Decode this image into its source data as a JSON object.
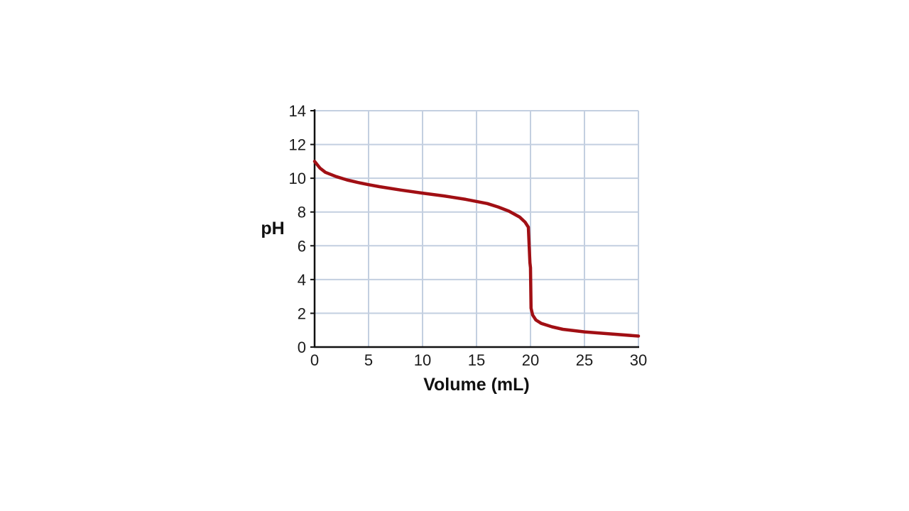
{
  "chart_data": {
    "type": "line",
    "title": "",
    "xlabel": "Volume (mL)",
    "ylabel": "pH",
    "xlim": [
      0,
      30
    ],
    "ylim": [
      0,
      14
    ],
    "xticks": [
      "0",
      "5",
      "10",
      "15",
      "20",
      "25",
      "30"
    ],
    "yticks": [
      "0",
      "2",
      "4",
      "6",
      "8",
      "10",
      "12",
      "14"
    ],
    "grid": true,
    "colors": {
      "line": "#a10f14",
      "grid": "#c3cfe0",
      "axis": "#111111"
    },
    "series": [
      {
        "x": [
          0,
          0.5,
          1,
          2,
          3,
          4,
          5,
          6,
          8,
          10,
          12,
          14,
          16,
          17,
          18,
          19,
          19.5,
          19.8,
          19.95,
          20,
          20.05,
          20.2,
          20.5,
          21,
          22,
          23,
          25,
          27,
          30
        ],
        "y": [
          11.0,
          10.6,
          10.35,
          10.1,
          9.9,
          9.75,
          9.62,
          9.5,
          9.3,
          9.12,
          8.95,
          8.75,
          8.5,
          8.3,
          8.05,
          7.7,
          7.4,
          7.1,
          5.0,
          4.7,
          2.3,
          1.9,
          1.6,
          1.4,
          1.2,
          1.05,
          0.9,
          0.8,
          0.65
        ]
      }
    ]
  }
}
